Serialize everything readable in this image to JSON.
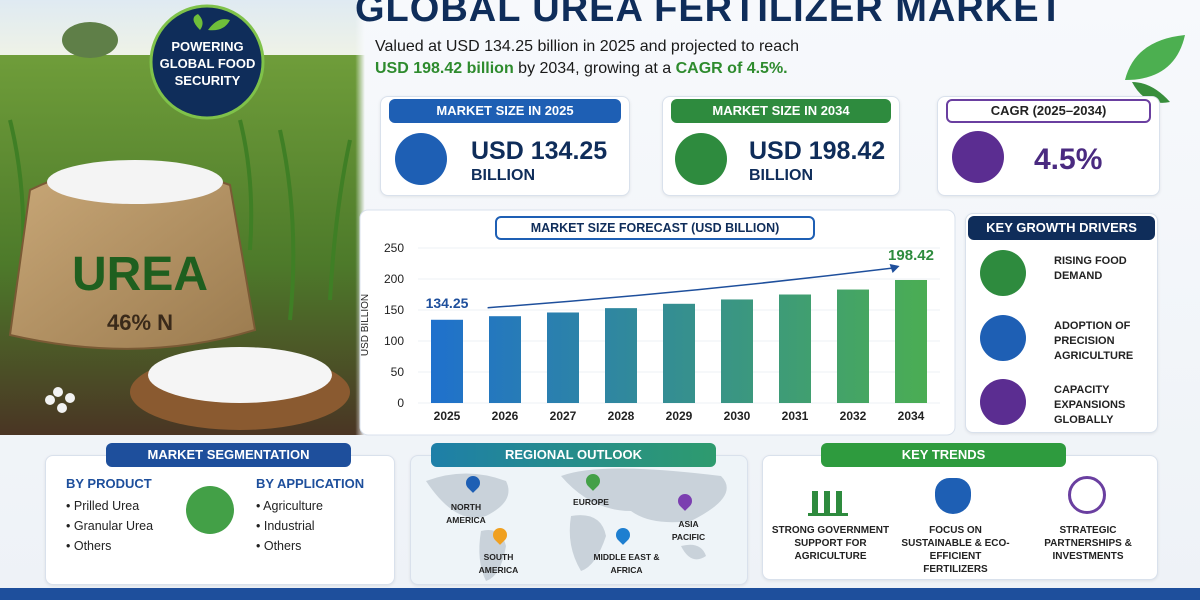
{
  "header": {
    "title": "GLOBAL UREA FERTILIZER MARKET",
    "badge": "POWERING GLOBAL FOOD SECURITY",
    "summary_line1": "Valued at USD 134.25 billion in 2025 and projected to reach",
    "summary_line2_a": "USD 198.42 billion",
    "summary_line2_b": " by 2034, growing at a ",
    "summary_line2_c": "CAGR of 4.5%."
  },
  "image": {
    "sack_label": "UREA",
    "sack_sub": "46% N"
  },
  "stats": [
    {
      "label": "MARKET SIZE IN 2025",
      "value": "USD 134.25",
      "unit": "BILLION"
    },
    {
      "label": "MARKET SIZE IN 2034",
      "value": "USD 198.42",
      "unit": "BILLION"
    },
    {
      "label": "CAGR (2025–2034)",
      "value": "4.5%"
    }
  ],
  "chart_data": {
    "type": "bar",
    "title": "MARKET SIZE FORECAST (USD BILLION)",
    "y_label": "USD BILLION",
    "categories": [
      "2025",
      "2026",
      "2027",
      "2028",
      "2029",
      "2030",
      "2031",
      "2032",
      "2034"
    ],
    "values": [
      134.25,
      140,
      146,
      153,
      160,
      167,
      175,
      183,
      198.42
    ],
    "color_start": "#1e6fd0",
    "color_end": "#4caf50",
    "ylim": [
      0,
      250
    ],
    "yticks": [
      0,
      50,
      100,
      150,
      200,
      250
    ]
  },
  "drivers": {
    "title": "KEY GROWTH DRIVERS",
    "items": [
      "RISING FOOD DEMAND",
      "ADOPTION OF PRECISION AGRICULTURE",
      "CAPACITY EXPANSIONS GLOBALLY"
    ]
  },
  "segmentation": {
    "title": "MARKET SEGMENTATION",
    "groups": [
      {
        "title": "BY PRODUCT",
        "items": [
          "Prilled Urea",
          "Granular Urea",
          "Others"
        ]
      },
      {
        "title": "BY APPLICATION",
        "items": [
          "Agriculture",
          "Industrial",
          "Others"
        ]
      }
    ]
  },
  "regional": {
    "title": "REGIONAL OUTLOOK",
    "regions": [
      "NORTH AMERICA",
      "EUROPE",
      "ASIA PACIFIC",
      "SOUTH AMERICA",
      "MIDDLE EAST & AFRICA"
    ]
  },
  "trends": {
    "title": "KEY TRENDS",
    "items": [
      "STRONG GOVERNMENT SUPPORT FOR AGRICULTURE",
      "FOCUS ON SUSTAINABLE & ECO-EFFICIENT FERTILIZERS",
      "STRATEGIC PARTNERSHIPS & INVESTMENTS"
    ]
  }
}
